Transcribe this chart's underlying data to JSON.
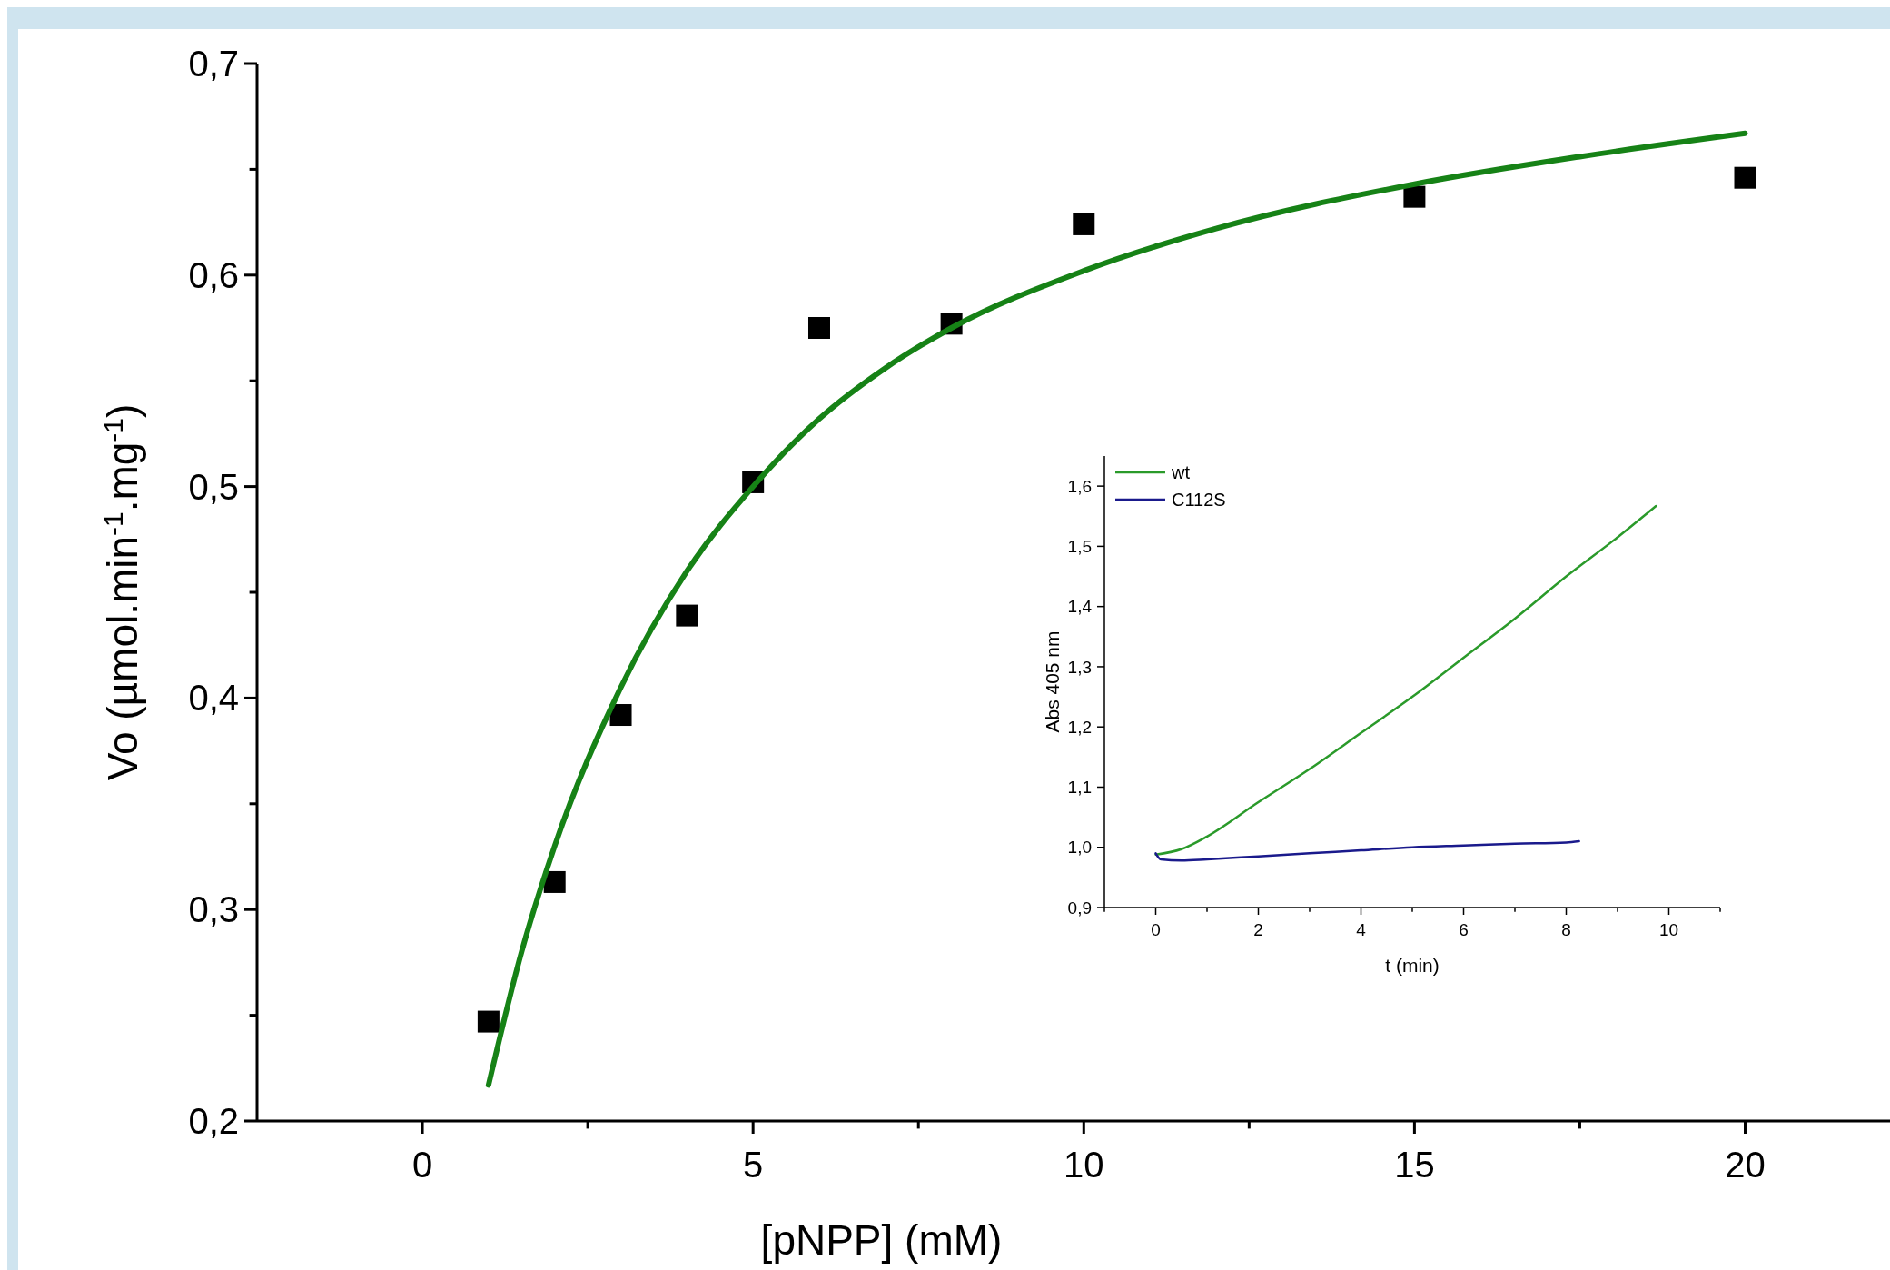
{
  "chart_data": [
    {
      "type": "scatter",
      "xlabel": "[pNPP] (mM)",
      "ylabel": "Vo (µmol.min$^{-1}$.mg$^{-1}$)",
      "xlim": [
        -2.5,
        22.3
      ],
      "ylim": [
        0.2,
        0.7
      ],
      "xticks": [
        {
          "value": 0,
          "label": "0"
        },
        {
          "value": 2.5,
          "label": null
        },
        {
          "value": 5,
          "label": "5"
        },
        {
          "value": 7.5,
          "label": null
        },
        {
          "value": 10,
          "label": "10"
        },
        {
          "value": 12.5,
          "label": null
        },
        {
          "value": 15,
          "label": "15"
        },
        {
          "value": 17.5,
          "label": null
        },
        {
          "value": 20,
          "label": "20"
        }
      ],
      "yticks": [
        {
          "value": 0.2,
          "label": "0,2"
        },
        {
          "value": 0.25,
          "label": null
        },
        {
          "value": 0.3,
          "label": "0,3"
        },
        {
          "value": 0.35,
          "label": null
        },
        {
          "value": 0.4,
          "label": "0,4"
        },
        {
          "value": 0.45,
          "label": null
        },
        {
          "value": 0.5,
          "label": "0,5"
        },
        {
          "value": 0.55,
          "label": null
        },
        {
          "value": 0.6,
          "label": "0,6"
        },
        {
          "value": 0.65,
          "label": null
        },
        {
          "value": 0.7,
          "label": "0,7"
        }
      ],
      "grid": false,
      "legend": false,
      "series": [
        {
          "marker": "square",
          "color": "#000000",
          "x": [
            1,
            2,
            3,
            4,
            5,
            6,
            8,
            10,
            15,
            20
          ],
          "values": [
            0.247,
            0.313,
            0.392,
            0.439,
            0.502,
            0.575,
            0.577,
            0.624,
            0.637,
            0.646
          ]
        },
        {
          "type": "line",
          "line_style": "solid",
          "marker": "none",
          "color": "#168216",
          "x": [
            1,
            1.5,
            2,
            3,
            4,
            5,
            6,
            7,
            8,
            10,
            12,
            15,
            17.5,
            20
          ],
          "values": [
            0.217,
            0.28,
            0.33,
            0.405,
            0.46,
            0.5,
            0.532,
            0.556,
            0.575,
            0.602,
            0.622,
            0.643,
            0.656,
            0.667
          ]
        }
      ]
    },
    {
      "type": "line",
      "xlabel": "t (min)",
      "ylabel": "Abs 405 nm",
      "xlim": [
        -1,
        11
      ],
      "ylim": [
        0.9,
        1.65
      ],
      "xticks": [
        {
          "value": -1,
          "label": null
        },
        {
          "value": 0,
          "label": "0"
        },
        {
          "value": 1,
          "label": null
        },
        {
          "value": 2,
          "label": "2"
        },
        {
          "value": 3,
          "label": null
        },
        {
          "value": 4,
          "label": "4"
        },
        {
          "value": 5,
          "label": null
        },
        {
          "value": 6,
          "label": "6"
        },
        {
          "value": 7,
          "label": null
        },
        {
          "value": 8,
          "label": "8"
        },
        {
          "value": 9,
          "label": null
        },
        {
          "value": 10,
          "label": "10"
        },
        {
          "value": 11,
          "label": null
        }
      ],
      "yticks": [
        {
          "value": 0.9,
          "label": "0,9"
        },
        {
          "value": 1.0,
          "label": "1,0"
        },
        {
          "value": 1.1,
          "label": "1,1"
        },
        {
          "value": 1.2,
          "label": "1,2"
        },
        {
          "value": 1.3,
          "label": "1,3"
        },
        {
          "value": 1.4,
          "label": "1,4"
        },
        {
          "value": 1.5,
          "label": "1,5"
        },
        {
          "value": 1.6,
          "label": "1,6"
        }
      ],
      "grid": false,
      "legend": "top left",
      "line_style": "solid",
      "marker": "none",
      "series": [
        {
          "name": "wt",
          "color": "#2a9a2a",
          "x": [
            0,
            0.5,
            1,
            2,
            3,
            4,
            5,
            6,
            7,
            8,
            9,
            9.75
          ],
          "values": [
            0.988,
            0.997,
            1.018,
            1.075,
            1.13,
            1.19,
            1.25,
            1.315,
            1.38,
            1.45,
            1.515,
            1.567
          ]
        },
        {
          "name": "C112S",
          "color": "#1a1a8c",
          "x": [
            0,
            0.1,
            0.5,
            1,
            2,
            3,
            4,
            5,
            6,
            7,
            8,
            8.25
          ],
          "values": [
            0.99,
            0.98,
            0.978,
            0.98,
            0.985,
            0.99,
            0.995,
            1.0,
            1.003,
            1.006,
            1.008,
            1.01
          ]
        }
      ]
    }
  ]
}
